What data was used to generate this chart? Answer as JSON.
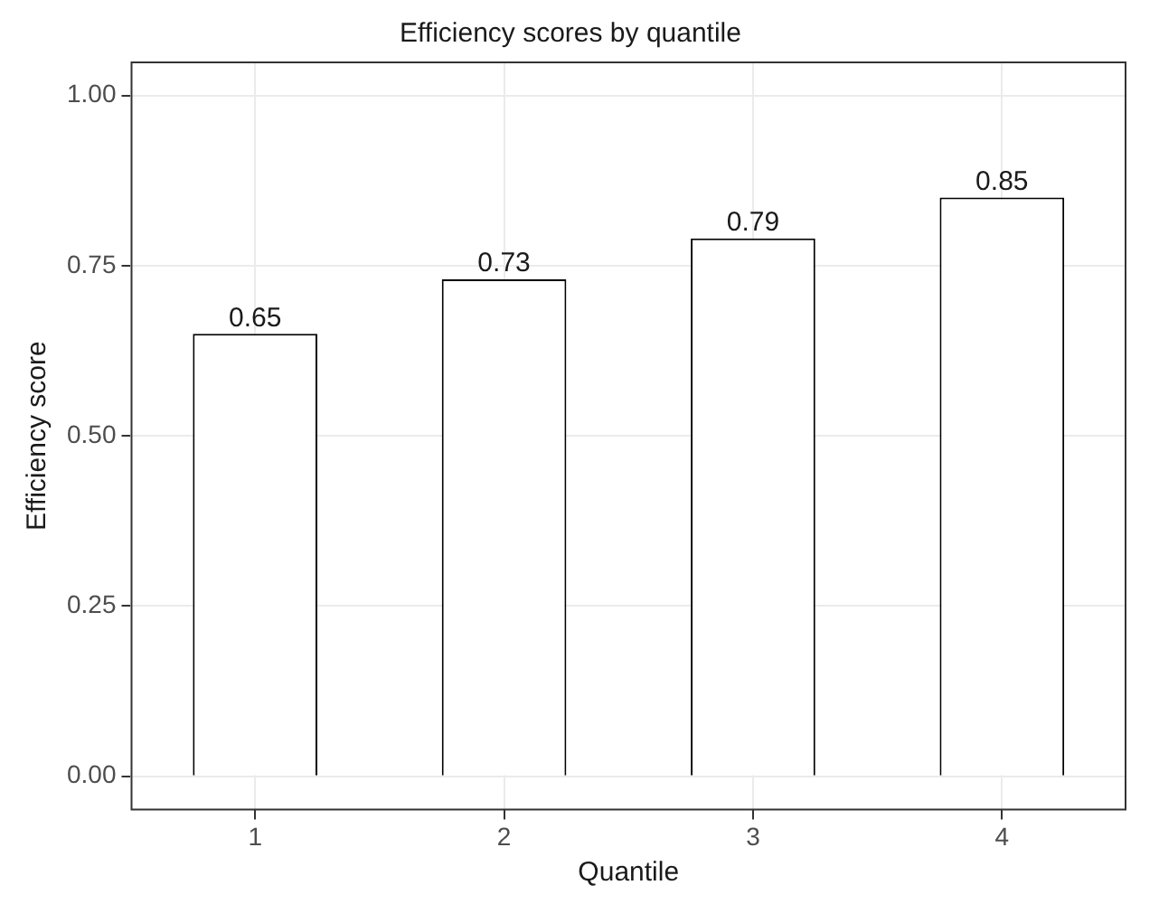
{
  "chart_data": {
    "type": "bar",
    "title": "Efficiency scores by quantile",
    "xlabel": "Quantile",
    "ylabel": "Efficiency score",
    "categories": [
      "1",
      "2",
      "3",
      "4"
    ],
    "values": [
      0.65,
      0.73,
      0.79,
      0.85
    ],
    "color": "#ffffff",
    "ylim": [
      -0.05,
      1.05
    ],
    "yticks": [
      {
        "value": 0,
        "label": "0.00"
      },
      {
        "value": 0.25,
        "label": "0.25"
      },
      {
        "value": 0.5,
        "label": "0.50"
      },
      {
        "value": 0.75,
        "label": "0.75"
      },
      {
        "value": 1,
        "label": "1.00"
      }
    ],
    "grid": true,
    "data_labels": true
  }
}
